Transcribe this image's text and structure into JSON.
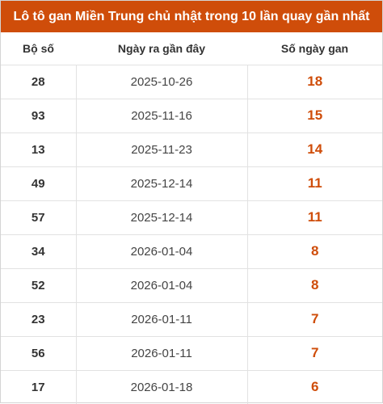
{
  "title": "Lô tô gan Miền Trung chủ nhật trong 10 lần quay gần nhất",
  "table": {
    "headers": [
      "Bộ số",
      "Ngày ra gần đây",
      "Số ngày gan"
    ],
    "rows": [
      {
        "number": "28",
        "date": "2025-10-26",
        "days": "18"
      },
      {
        "number": "93",
        "date": "2025-11-16",
        "days": "15"
      },
      {
        "number": "13",
        "date": "2025-11-23",
        "days": "14"
      },
      {
        "number": "49",
        "date": "2025-12-14",
        "days": "11"
      },
      {
        "number": "57",
        "date": "2025-12-14",
        "days": "11"
      },
      {
        "number": "34",
        "date": "2026-01-04",
        "days": "8"
      },
      {
        "number": "52",
        "date": "2026-01-04",
        "days": "8"
      },
      {
        "number": "23",
        "date": "2026-01-11",
        "days": "7"
      },
      {
        "number": "56",
        "date": "2026-01-11",
        "days": "7"
      },
      {
        "number": "17",
        "date": "2026-01-18",
        "days": "6"
      }
    ]
  },
  "colors": {
    "accent": "#cf4d0a",
    "header_text": "#ffffff",
    "border": "#e2e2e2"
  }
}
